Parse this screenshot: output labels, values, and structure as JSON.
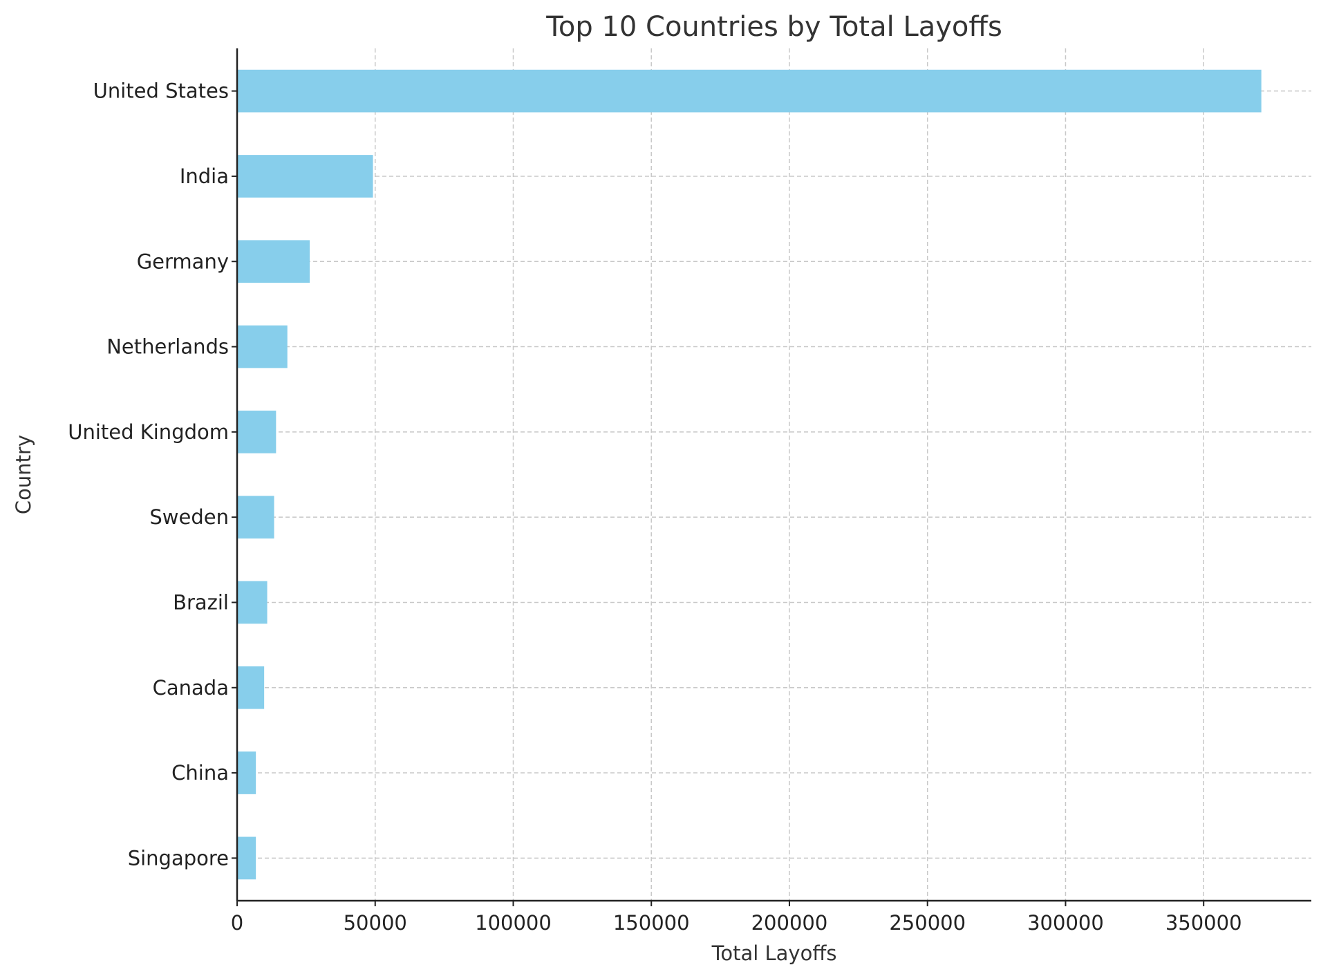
{
  "chart_data": {
    "type": "bar",
    "orientation": "horizontal",
    "title": "Top 10 Countries by Total Layoffs",
    "xlabel": "Total Layoffs",
    "ylabel": "Country",
    "categories": [
      "United States",
      "India",
      "Germany",
      "Netherlands",
      "United Kingdom",
      "Sweden",
      "Brazil",
      "Canada",
      "China",
      "Singapore"
    ],
    "values": [
      370900,
      49200,
      26300,
      18200,
      14100,
      13400,
      10900,
      9800,
      6800,
      6800
    ],
    "xlim": [
      0,
      389000
    ],
    "xticks": [
      0,
      50000,
      100000,
      150000,
      200000,
      250000,
      300000,
      350000
    ],
    "xtick_labels": [
      "0",
      "50000",
      "100000",
      "150000",
      "200000",
      "250000",
      "300000",
      "350000"
    ],
    "grid": true,
    "bar_color": "#87ceeb"
  }
}
